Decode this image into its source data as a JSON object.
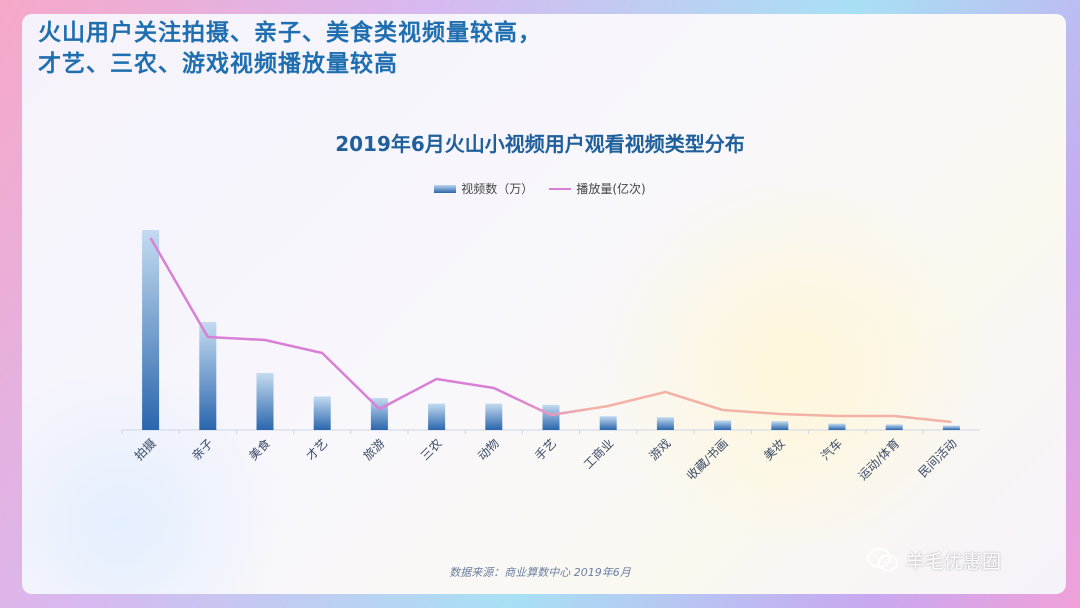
{
  "headline": {
    "line1": "火山用户关注拍摄、亲子、美食类视频量较高，",
    "line2": "才艺、三农、游戏视频播放量较高"
  },
  "chart_data": {
    "type": "bar",
    "title": "2019年6月火山小视频用户观看视频类型分布",
    "categories": [
      "拍摄",
      "亲子",
      "美食",
      "才艺",
      "旅游",
      "三农",
      "动物",
      "手艺",
      "工商业",
      "游戏",
      "收藏/书画",
      "美妆",
      "汽车",
      "运动/体育",
      "民间活动"
    ],
    "series": [
      {
        "name": "视频数（万）",
        "type": "bar",
        "values": [
          100,
          54,
          28.5,
          16.8,
          16,
          13.2,
          13.2,
          12.6,
          6.9,
          6.4,
          4.8,
          4.4,
          3.2,
          2.8,
          2.2
        ]
      },
      {
        "name": "播放量(亿次)",
        "type": "line",
        "values": [
          96,
          46.5,
          45,
          38.5,
          10.5,
          25.5,
          21,
          7.5,
          12,
          19,
          10,
          8,
          7,
          7,
          4
        ]
      }
    ],
    "ylim": [
      0,
      110
    ],
    "grid": false,
    "legend_position": "top-center",
    "colors": {
      "bar_top": "#c4dbf0",
      "bar_bottom": "#2a66ad",
      "line_start": "#d97fd6",
      "line_end": "#f3b2a6"
    }
  },
  "source": "数据来源：商业算数中心   2019年6月",
  "watermark": "羊毛优惠圈"
}
